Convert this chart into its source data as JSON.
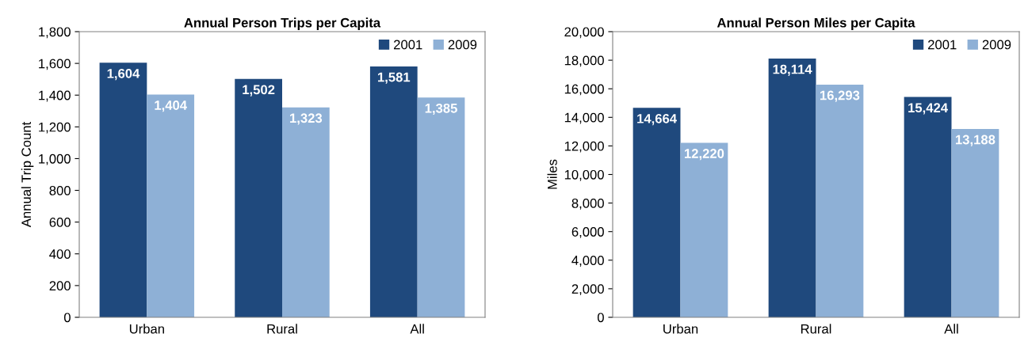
{
  "chart_data": [
    {
      "type": "bar",
      "title": "Annual Person Trips per Capita",
      "ylabel": "Annual Trip Count",
      "categories": [
        "Urban",
        "Rural",
        "All"
      ],
      "series": [
        {
          "name": "2001",
          "color": "#1f497d",
          "values": [
            1604,
            1502,
            1581
          ],
          "value_labels": [
            "1,604",
            "1,502",
            "1,581"
          ]
        },
        {
          "name": "2009",
          "color": "#8eb0d6",
          "values": [
            1404,
            1323,
            1385
          ],
          "value_labels": [
            "1,404",
            "1,323",
            "1,385"
          ]
        }
      ],
      "ylim": [
        0,
        1800
      ],
      "yticks": [
        {
          "value": 0,
          "label": "0"
        },
        {
          "value": 200,
          "label": "200"
        },
        {
          "value": 400,
          "label": "400"
        },
        {
          "value": 600,
          "label": "600"
        },
        {
          "value": 800,
          "label": "800"
        },
        {
          "value": 1000,
          "label": "1,000"
        },
        {
          "value": 1200,
          "label": "1,200"
        },
        {
          "value": 1400,
          "label": "1,400"
        },
        {
          "value": 1600,
          "label": "1,600"
        },
        {
          "value": 1800,
          "label": "1,800"
        }
      ],
      "grid": false,
      "legend": "top right"
    },
    {
      "type": "bar",
      "title": "Annual Person Miles per Capita",
      "ylabel": "Miles",
      "categories": [
        "Urban",
        "Rural",
        "All"
      ],
      "series": [
        {
          "name": "2001",
          "color": "#1f497d",
          "values": [
            14664,
            18114,
            15424
          ],
          "value_labels": [
            "14,664",
            "18,114",
            "15,424"
          ]
        },
        {
          "name": "2009",
          "color": "#8eb0d6",
          "values": [
            12220,
            16293,
            13188
          ],
          "value_labels": [
            "12,220",
            "16,293",
            "13,188"
          ]
        }
      ],
      "ylim": [
        0,
        20000
      ],
      "yticks": [
        {
          "value": 0,
          "label": "0"
        },
        {
          "value": 2000,
          "label": "2,000"
        },
        {
          "value": 4000,
          "label": "4,000"
        },
        {
          "value": 6000,
          "label": "6,000"
        },
        {
          "value": 8000,
          "label": "8,000"
        },
        {
          "value": 10000,
          "label": "10,000"
        },
        {
          "value": 12000,
          "label": "12,000"
        },
        {
          "value": 14000,
          "label": "14,000"
        },
        {
          "value": 16000,
          "label": "16,000"
        },
        {
          "value": 18000,
          "label": "18,000"
        },
        {
          "value": 20000,
          "label": "20,000"
        }
      ],
      "grid": false,
      "legend": "top right"
    }
  ]
}
